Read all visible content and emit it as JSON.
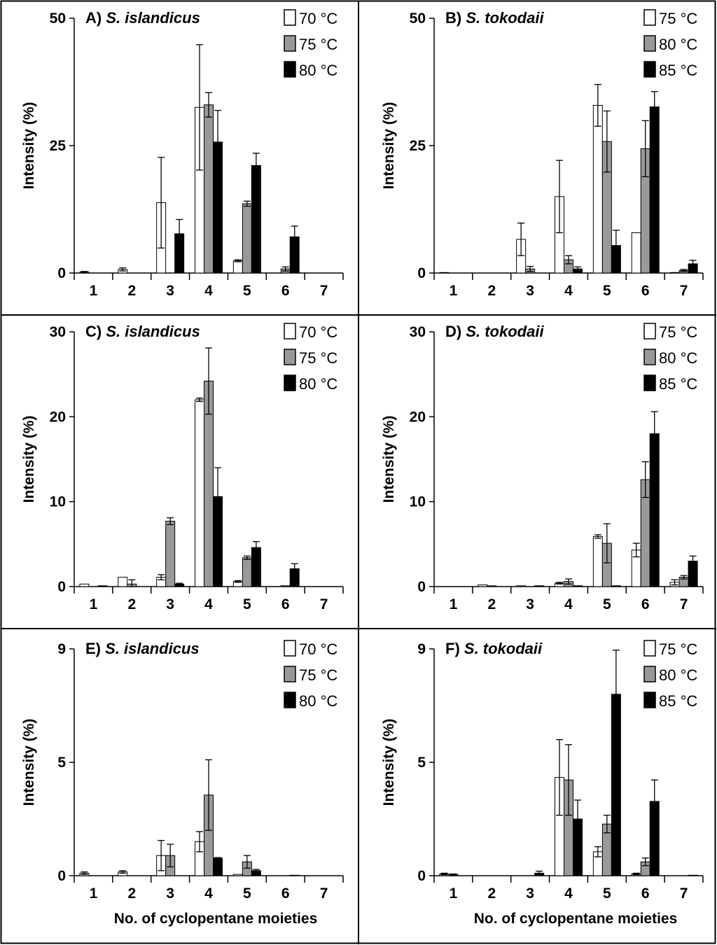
{
  "chart_data": [
    {
      "id": "A",
      "type": "bar",
      "title_prefix": "A)",
      "species": "S. islandicus",
      "ylabel": "Intensity (%)",
      "xlabel": "",
      "ylim": [
        0,
        50
      ],
      "yticks": [
        "0",
        "25",
        "50"
      ],
      "categories": [
        "1",
        "2",
        "3",
        "4",
        "5",
        "6",
        "7"
      ],
      "legend_position": "top-right",
      "series": [
        {
          "name": "70 °C",
          "color": "#ffffff",
          "values": [
            0.2,
            0.7,
            13.8,
            32.5,
            2.4,
            0,
            0
          ],
          "err": [
            0.1,
            0.3,
            8.9,
            12.3,
            0.2,
            0,
            0
          ]
        },
        {
          "name": "75 °C",
          "color": "#999999",
          "values": [
            0,
            0,
            0,
            33.0,
            13.6,
            0.8,
            0
          ],
          "err": [
            0,
            0,
            0,
            2.4,
            0.5,
            0.4,
            0
          ]
        },
        {
          "name": "80 °C",
          "color": "#000000",
          "values": [
            0,
            0,
            7.7,
            25.7,
            21.1,
            7.1,
            0
          ],
          "err": [
            0,
            0,
            2.8,
            6.2,
            2.4,
            2.1,
            0
          ]
        }
      ]
    },
    {
      "id": "B",
      "type": "bar",
      "title_prefix": "B)",
      "species": "S. tokodaii",
      "ylabel": "Intensity (%)",
      "xlabel": "",
      "ylim": [
        0,
        50
      ],
      "yticks": [
        "0",
        "25",
        "50"
      ],
      "categories": [
        "1",
        "2",
        "3",
        "4",
        "5",
        "6",
        "7"
      ],
      "legend_position": "top-right",
      "series": [
        {
          "name": "75 °C",
          "color": "#ffffff",
          "values": [
            0.1,
            0,
            6.6,
            15.0,
            32.9,
            7.9,
            0.1
          ],
          "err": [
            0,
            0,
            3.2,
            7.1,
            4.1,
            0,
            0
          ]
        },
        {
          "name": "80 °C",
          "color": "#999999",
          "values": [
            0,
            0,
            0.8,
            2.6,
            25.8,
            24.4,
            0.5
          ],
          "err": [
            0,
            0,
            0.5,
            0.8,
            6.0,
            5.5,
            0.2
          ]
        },
        {
          "name": "85 °C",
          "color": "#000000",
          "values": [
            0,
            0,
            0,
            0.8,
            5.4,
            32.6,
            1.8
          ],
          "err": [
            0,
            0,
            0,
            0.4,
            3.0,
            3.0,
            0.7
          ]
        }
      ]
    },
    {
      "id": "C",
      "type": "bar",
      "title_prefix": "C)",
      "species": "S. islandicus",
      "ylabel": "Intensity (%)",
      "xlabel": "",
      "ylim": [
        0,
        30
      ],
      "yticks": [
        "0",
        "10",
        "20",
        "30"
      ],
      "categories": [
        "1",
        "2",
        "3",
        "4",
        "5",
        "6",
        "7"
      ],
      "legend_position": "top-right",
      "series": [
        {
          "name": "70 °C",
          "color": "#ffffff",
          "values": [
            0.3,
            1.1,
            1.1,
            22.0,
            0.6,
            0,
            0
          ],
          "err": [
            0,
            0,
            0.3,
            0.2,
            0.1,
            0,
            0
          ]
        },
        {
          "name": "75 °C",
          "color": "#999999",
          "values": [
            0,
            0.3,
            7.7,
            24.2,
            3.4,
            0.1,
            0
          ],
          "err": [
            0,
            0.5,
            0.4,
            3.9,
            0.2,
            0,
            0
          ]
        },
        {
          "name": "80 °C",
          "color": "#000000",
          "values": [
            0.1,
            0,
            0.3,
            10.6,
            4.6,
            2.1,
            0
          ],
          "err": [
            0,
            0,
            0.1,
            3.4,
            0.7,
            0.6,
            0
          ]
        }
      ]
    },
    {
      "id": "D",
      "type": "bar",
      "title_prefix": "D)",
      "species": "S. tokodaii",
      "ylabel": "Intensity (%)",
      "xlabel": "",
      "ylim": [
        0,
        30
      ],
      "yticks": [
        "0",
        "10",
        "20",
        "30"
      ],
      "categories": [
        "1",
        "2",
        "3",
        "4",
        "5",
        "6",
        "7"
      ],
      "legend_position": "top-right",
      "series": [
        {
          "name": "75 °C",
          "color": "#ffffff",
          "values": [
            0,
            0.2,
            0.1,
            0.4,
            5.9,
            4.3,
            0.5
          ],
          "err": [
            0,
            0,
            0,
            0.1,
            0.2,
            0.8,
            0.3
          ]
        },
        {
          "name": "80 °C",
          "color": "#999999",
          "values": [
            0,
            0.1,
            0,
            0.6,
            5.1,
            12.6,
            1.1
          ],
          "err": [
            0,
            0,
            0,
            0.3,
            2.3,
            2.1,
            0.2
          ]
        },
        {
          "name": "85 °C",
          "color": "#000000",
          "values": [
            0,
            0,
            0.1,
            0.1,
            0.1,
            18.0,
            3.0
          ],
          "err": [
            0,
            0,
            0,
            0,
            0,
            2.6,
            0.6
          ]
        }
      ]
    },
    {
      "id": "E",
      "type": "bar",
      "title_prefix": "E)",
      "species": "S. islandicus",
      "ylabel": "Intensity (%)",
      "xlabel": "No. of cyclopentane moieties",
      "ylim": [
        0,
        9
      ],
      "yticks": [
        "0",
        "5",
        "9"
      ],
      "ytick_values": [
        0,
        4.5,
        9
      ],
      "categories": [
        "1",
        "2",
        "3",
        "4",
        "5",
        "6",
        "7"
      ],
      "legend_position": "top-right",
      "series": [
        {
          "name": "70 °C",
          "color": "#ffffff",
          "values": [
            0.1,
            0.15,
            0.8,
            1.35,
            0.05,
            0,
            0
          ],
          "err": [
            0.05,
            0.05,
            0.6,
            0.4,
            0,
            0,
            0
          ]
        },
        {
          "name": "75 °C",
          "color": "#999999",
          "values": [
            0,
            0,
            0.8,
            3.2,
            0.55,
            0,
            0
          ],
          "err": [
            0,
            0,
            0.45,
            1.4,
            0.25,
            0,
            0
          ]
        },
        {
          "name": "80 °C",
          "color": "#000000",
          "values": [
            0,
            0,
            0,
            0.7,
            0.2,
            0.02,
            0
          ],
          "err": [
            0,
            0,
            0,
            0.02,
            0.05,
            0,
            0
          ]
        }
      ]
    },
    {
      "id": "F",
      "type": "bar",
      "title_prefix": "F)",
      "species": "S. tokodaii",
      "ylabel": "Intensity (%)",
      "xlabel": "No. of cyclopentane moieties",
      "ylim": [
        0,
        9
      ],
      "yticks": [
        "0",
        "5",
        "9"
      ],
      "ytick_values": [
        0,
        4.5,
        9
      ],
      "categories": [
        "1",
        "2",
        "3",
        "4",
        "5",
        "6",
        "7"
      ],
      "legend_position": "top-right",
      "series": [
        {
          "name": "75 °C",
          "color": "#ffffff",
          "values": [
            0.07,
            0,
            0,
            3.9,
            0.95,
            0.07,
            0
          ],
          "err": [
            0.03,
            0,
            0,
            1.5,
            0.2,
            0.03,
            0
          ]
        },
        {
          "name": "80 °C",
          "color": "#999999",
          "values": [
            0.05,
            0,
            0,
            3.8,
            2.05,
            0.55,
            0
          ],
          "err": [
            0.02,
            0,
            0,
            1.4,
            0.35,
            0.15,
            0
          ]
        },
        {
          "name": "85 °C",
          "color": "#000000",
          "values": [
            0,
            0,
            0.1,
            2.25,
            7.2,
            2.95,
            0.02
          ],
          "err": [
            0,
            0,
            0.08,
            0.75,
            1.75,
            0.85,
            0
          ]
        }
      ]
    }
  ]
}
